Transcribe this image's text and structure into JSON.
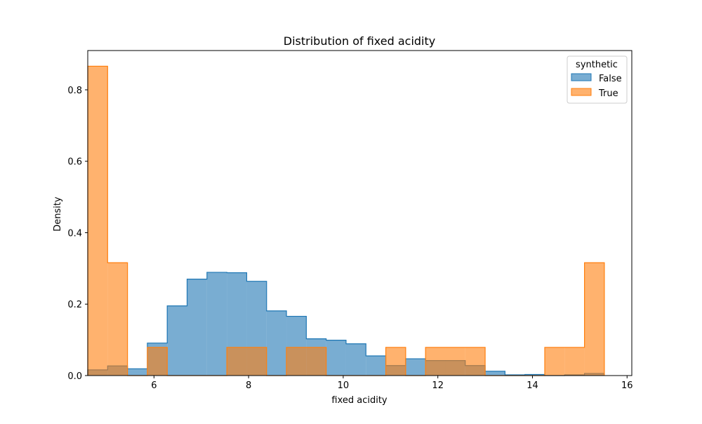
{
  "chart_data": {
    "type": "histogram",
    "title": "Distribution of fixed acidity",
    "xlabel": "fixed acidity",
    "ylabel": "Density",
    "xlim": [
      4.6,
      16.1
    ],
    "ylim": [
      0,
      0.91
    ],
    "xticks": [
      "6",
      "8",
      "10",
      "12",
      "14",
      "16"
    ],
    "yticks": [
      "0.0",
      "0.2",
      "0.4",
      "0.6",
      "0.8"
    ],
    "bin_edges": [
      4.6,
      5.02,
      5.44,
      5.86,
      6.28,
      6.7,
      7.12,
      7.54,
      7.96,
      8.38,
      8.8,
      9.22,
      9.64,
      10.06,
      10.48,
      10.9,
      11.32,
      11.74,
      12.16,
      12.58,
      13.0,
      13.42,
      13.84,
      14.26,
      14.68,
      15.1,
      15.52
    ],
    "legend": {
      "title": "synthetic",
      "position": "upper right"
    },
    "series": [
      {
        "name": "False",
        "color": "#1f77b4",
        "values": [
          0.016,
          0.027,
          0.019,
          0.091,
          0.195,
          0.27,
          0.289,
          0.288,
          0.264,
          0.181,
          0.166,
          0.103,
          0.099,
          0.089,
          0.055,
          0.028,
          0.047,
          0.042,
          0.042,
          0.028,
          0.012,
          0.002,
          0.003,
          0.0,
          0.002,
          0.006
        ]
      },
      {
        "name": "True",
        "color": "#ff7f0e",
        "values": [
          0.866,
          0.316,
          0.0,
          0.079,
          0.0,
          0.0,
          0.0,
          0.079,
          0.079,
          0.0,
          0.079,
          0.079,
          0.0,
          0.0,
          0.0,
          0.079,
          0.0,
          0.079,
          0.079,
          0.079,
          0.0,
          0.0,
          0.0,
          0.079,
          0.079,
          0.316
        ]
      }
    ]
  }
}
